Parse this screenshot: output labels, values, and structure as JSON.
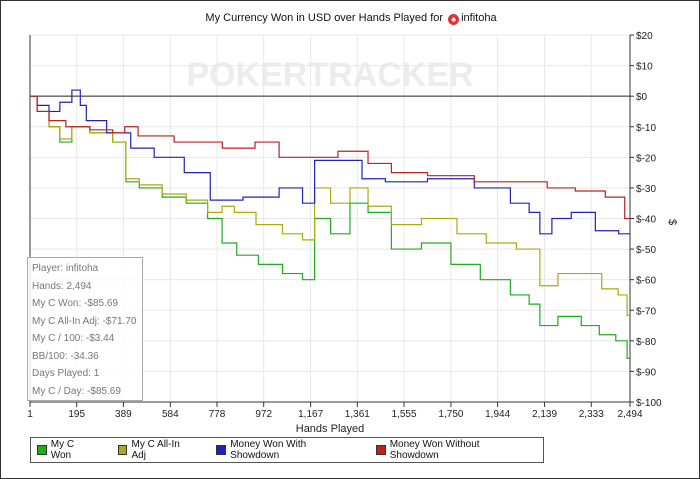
{
  "chart_data": {
    "type": "line",
    "title_prefix": "My Currency Won in USD over Hands Played for",
    "player": "infitoha",
    "watermark": "POKERTRACKER",
    "xlabel": "Hands Played",
    "ylabel": "$",
    "xlim": [
      1,
      2494
    ],
    "ylim": [
      -100,
      20
    ],
    "x_ticks": [
      1,
      195,
      389,
      584,
      778,
      972,
      1167,
      1361,
      1555,
      1750,
      1944,
      2139,
      2333,
      2494
    ],
    "x_tick_labels": [
      "1",
      "195",
      "389",
      "584",
      "778",
      "972",
      "1,167",
      "1,361",
      "1,555",
      "1,750",
      "1,944",
      "2,139",
      "2,333",
      "2,494"
    ],
    "y_ticks": [
      20,
      10,
      0,
      -10,
      -20,
      -30,
      -40,
      -50,
      -60,
      -70,
      -80,
      -90,
      -100
    ],
    "y_tick_labels": [
      "$20",
      "$10",
      "$0",
      "$-10",
      "$-20",
      "$-30",
      "$-40",
      "$-50",
      "$-60",
      "$-70",
      "$-80",
      "$-90",
      "$-100"
    ],
    "grid": true,
    "legend_position": "bottom",
    "series": [
      {
        "name": "My C Won",
        "color": "#22aa22",
        "x": [
          1,
          60,
          100,
          150,
          200,
          300,
          389,
          410,
          500,
          600,
          700,
          778,
          820,
          900,
          1000,
          1100,
          1167,
          1200,
          1300,
          1361,
          1450,
          1555,
          1700,
          1800,
          1944,
          2050,
          2100,
          2139,
          2250,
          2333,
          2400,
          2470,
          2494
        ],
        "y": [
          0,
          -5,
          -10,
          -15,
          -10,
          -12,
          -15,
          -28,
          -30,
          -33,
          -35,
          -40,
          -48,
          -52,
          -55,
          -58,
          -60,
          -40,
          -45,
          -35,
          -38,
          -50,
          -48,
          -55,
          -60,
          -65,
          -68,
          -75,
          -72,
          -75,
          -78,
          -80,
          -85.69
        ]
      },
      {
        "name": "My C All-In Adj",
        "color": "#aaaa11",
        "x": [
          1,
          60,
          100,
          150,
          200,
          300,
          389,
          410,
          500,
          600,
          700,
          778,
          820,
          880,
          1000,
          1100,
          1167,
          1200,
          1300,
          1361,
          1450,
          1555,
          1700,
          1850,
          1944,
          2100,
          2139,
          2250,
          2333,
          2420,
          2470,
          2494
        ],
        "y": [
          0,
          -5,
          -10,
          -14,
          -10,
          -12,
          -15,
          -27,
          -29,
          -32,
          -34,
          -38,
          -36,
          -38,
          -42,
          -45,
          -47,
          -30,
          -35,
          -30,
          -36,
          -42,
          -40,
          -45,
          -48,
          -50,
          -62,
          -58,
          -58,
          -63,
          -65,
          -71.7
        ]
      },
      {
        "name": "Money Won With Showdown",
        "color": "#2222bb",
        "x": [
          1,
          60,
          100,
          150,
          200,
          220,
          250,
          389,
          450,
          584,
          700,
          800,
          972,
          1100,
          1167,
          1200,
          1361,
          1400,
          1555,
          1750,
          1944,
          2050,
          2100,
          2139,
          2200,
          2300,
          2400,
          2494
        ],
        "y": [
          0,
          -3,
          -5,
          -2,
          2,
          -3,
          -8,
          -12,
          -17,
          -20,
          -25,
          -34,
          -33,
          -30,
          -35,
          -21,
          -21,
          -27,
          -28,
          -27,
          -30,
          -35,
          -38,
          -45,
          -40,
          -38,
          -44,
          -45
        ]
      },
      {
        "name": "Money Won Without Showdown",
        "color": "#bb2222",
        "x": [
          1,
          60,
          100,
          200,
          300,
          389,
          400,
          500,
          700,
          900,
          972,
          1100,
          1200,
          1361,
          1450,
          1555,
          1750,
          1944,
          2100,
          2200,
          2333,
          2450,
          2494
        ],
        "y": [
          0,
          -5,
          -8,
          -10,
          -11,
          -12,
          -10,
          -13,
          -15,
          -17,
          -15,
          -20,
          -20,
          -18,
          -22,
          -25,
          -26,
          -28,
          -28,
          -30,
          -31,
          -33,
          -40
        ]
      }
    ]
  },
  "stats": [
    "Player: infitoha",
    "Hands: 2,494",
    "My C Won: -$85.69",
    "My C All-In Adj: -$71.70",
    "My C / 100: -$3.44",
    "BB/100: -34.36",
    "Days Played: 1",
    "My C / Day: -$85.69"
  ]
}
